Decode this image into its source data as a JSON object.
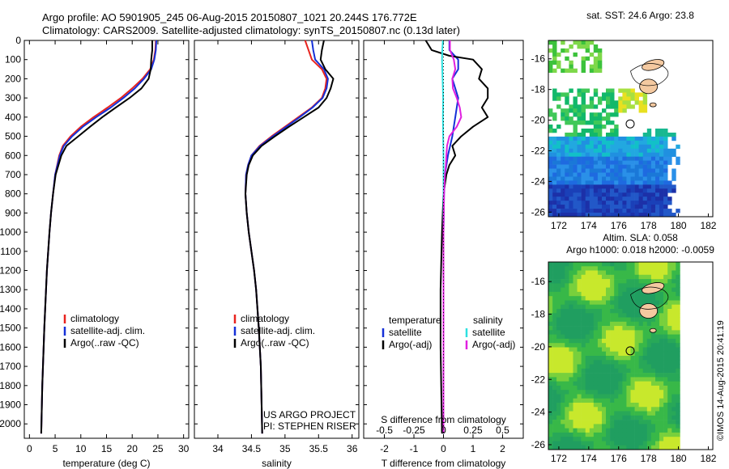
{
  "header": {
    "line1": "Argo profile: AO 5901905_245 06-Aug-2015 20150807_1021 20.244S 176.772E",
    "line2": "Climatology: CARS2009. Satellite-adjusted climatology: synTS_20150807.nc (0.13d later)"
  },
  "credits": {
    "project": "US ARGO PROJECT",
    "pi": "PI: STEPHEN RISER",
    "imos": "©IMOS 14-Aug-2015 20:41:19"
  },
  "colors": {
    "climatology": "#e8231e",
    "satellite": "#1530d8",
    "argo": "#000000",
    "salinity_satellite": "#2de0e0",
    "salinity_argo": "#e020e0"
  },
  "depth_axis": {
    "ylim": [
      0,
      2075
    ],
    "ticks": [
      0,
      100,
      200,
      300,
      400,
      500,
      600,
      700,
      800,
      900,
      1000,
      1100,
      1200,
      1300,
      1400,
      1500,
      1600,
      1700,
      1800,
      1900,
      2000
    ]
  },
  "chart_data": [
    {
      "id": "temperature",
      "type": "line",
      "xlabel": "temperature (deg C)",
      "xlim": [
        -1,
        31
      ],
      "xticks": [
        0,
        5,
        10,
        15,
        20,
        25,
        30
      ],
      "legend": [
        "climatology",
        "satellite-adj. clim.",
        "Argo(..raw -QC)"
      ],
      "legend_position": "lower-middle",
      "series": [
        {
          "name": "climatology",
          "color": "#e8231e",
          "depth": [
            0,
            50,
            100,
            150,
            200,
            250,
            300,
            350,
            400,
            450,
            500,
            550,
            600,
            700,
            800,
            900,
            1000,
            1200,
            1500,
            1800,
            2050
          ],
          "values": [
            24.6,
            24.5,
            24.2,
            23.5,
            22.0,
            20.0,
            17.8,
            15.2,
            12.5,
            10.0,
            8.0,
            6.5,
            5.8,
            5.0,
            4.6,
            4.2,
            3.9,
            3.4,
            2.9,
            2.5,
            2.3
          ]
        },
        {
          "name": "satellite-adj. clim.",
          "color": "#1530d8",
          "depth": [
            0,
            50,
            100,
            150,
            200,
            250,
            300,
            350,
            400,
            450,
            500,
            550,
            600,
            700,
            800,
            900,
            1000,
            1200,
            1500,
            1800,
            2050
          ],
          "values": [
            24.7,
            24.6,
            24.3,
            23.7,
            22.3,
            20.5,
            18.3,
            15.8,
            13.0,
            10.4,
            8.3,
            6.7,
            5.9,
            5.0,
            4.6,
            4.2,
            3.9,
            3.4,
            2.9,
            2.5,
            2.3
          ]
        },
        {
          "name": "Argo(..raw -QC)",
          "color": "#000000",
          "depth": [
            0,
            50,
            75,
            100,
            150,
            200,
            250,
            300,
            350,
            400,
            450,
            500,
            550,
            600,
            700,
            800,
            900,
            1000,
            1200,
            1500,
            1800,
            2050
          ],
          "values": [
            23.9,
            23.9,
            23.8,
            23.7,
            23.6,
            23.2,
            21.8,
            19.5,
            16.8,
            14.2,
            11.8,
            9.5,
            7.2,
            6.2,
            5.1,
            4.6,
            4.2,
            3.9,
            3.4,
            2.9,
            2.5,
            2.3
          ]
        }
      ]
    },
    {
      "id": "salinity",
      "type": "line",
      "xlabel": "salinity",
      "xlim": [
        33.65,
        36.1
      ],
      "xticks": [
        34,
        34.5,
        35,
        35.5,
        36
      ],
      "legend": [
        "climatology",
        "satellite-adj. clim.",
        "Argo(..raw -QC)"
      ],
      "legend_position": "lower-middle",
      "series": [
        {
          "name": "climatology",
          "color": "#e8231e",
          "depth": [
            0,
            50,
            100,
            150,
            200,
            250,
            300,
            350,
            400,
            450,
            500,
            550,
            600,
            650,
            700,
            800,
            900,
            1000,
            1100,
            1200,
            1300,
            1500,
            1700,
            2050
          ],
          "values": [
            35.3,
            35.35,
            35.4,
            35.55,
            35.62,
            35.6,
            35.55,
            35.4,
            35.2,
            35.0,
            34.8,
            34.62,
            34.5,
            34.45,
            34.42,
            34.41,
            34.43,
            34.46,
            34.5,
            34.54,
            34.57,
            34.61,
            34.64,
            34.66
          ]
        },
        {
          "name": "satellite-adj. clim.",
          "color": "#1530d8",
          "depth": [
            0,
            50,
            100,
            150,
            200,
            250,
            300,
            350,
            400,
            450,
            500,
            550,
            600,
            650,
            700,
            800,
            900,
            1000,
            1100,
            1200,
            1300,
            1500,
            1700,
            2050
          ],
          "values": [
            35.4,
            35.42,
            35.45,
            35.58,
            35.64,
            35.62,
            35.56,
            35.41,
            35.22,
            35.02,
            34.82,
            34.63,
            34.5,
            34.45,
            34.42,
            34.41,
            34.43,
            34.46,
            34.5,
            34.54,
            34.57,
            34.61,
            34.64,
            34.66
          ]
        },
        {
          "name": "Argo(..raw -QC)",
          "color": "#000000",
          "depth": [
            0,
            50,
            100,
            150,
            200,
            250,
            300,
            350,
            400,
            450,
            500,
            550,
            600,
            650,
            700,
            800,
            900,
            1000,
            1100,
            1200,
            1300,
            1500,
            1700,
            2050
          ],
          "values": [
            35.58,
            35.55,
            35.53,
            35.6,
            35.72,
            35.68,
            35.62,
            35.5,
            35.28,
            35.06,
            34.85,
            34.65,
            34.52,
            34.46,
            34.43,
            34.41,
            34.43,
            34.46,
            34.5,
            34.54,
            34.57,
            34.61,
            34.64,
            34.66
          ]
        }
      ]
    },
    {
      "id": "difference",
      "type": "line",
      "xlabel": "T difference from climatology",
      "xlabel_top": "S difference from climatology",
      "xlim": [
        -2.7,
        2.7
      ],
      "xticks": [
        -2,
        -1,
        0,
        1,
        2
      ],
      "xticks_top": [
        "-0.5",
        "-0.25",
        "0",
        "0.25",
        "0.5"
      ],
      "legend_temperature_title": "temperature",
      "legend_salinity_title": "salinity",
      "legend_temperature": [
        "satellite",
        "Argo(-adj)"
      ],
      "legend_salinity": [
        "satellite",
        "Argo(-adj)"
      ],
      "series": [
        {
          "name": "T satellite",
          "color": "#1530d8",
          "depth": [
            0,
            50,
            100,
            150,
            200,
            300,
            400,
            500,
            600,
            700,
            800,
            1000,
            2050
          ],
          "values": [
            0.2,
            0.2,
            0.5,
            0.5,
            0.3,
            0.5,
            0.4,
            0.3,
            0.15,
            0.05,
            0.02,
            0.0,
            0.0
          ]
        },
        {
          "name": "T Argo(-adj)",
          "color": "#000000",
          "depth": [
            0,
            50,
            80,
            100,
            150,
            200,
            250,
            300,
            350,
            400,
            450,
            500,
            550,
            600,
            650,
            700,
            800,
            1000,
            1300,
            1600,
            2050
          ],
          "values": [
            -0.6,
            -0.4,
            0.2,
            1.0,
            1.3,
            1.2,
            1.5,
            1.5,
            1.3,
            1.5,
            1.0,
            0.6,
            0.3,
            0.4,
            0.2,
            0.1,
            0.0,
            -0.05,
            -0.1,
            -0.1,
            -0.05
          ]
        },
        {
          "name": "S satellite",
          "color": "#2de0e0",
          "depth": [
            0,
            50,
            100,
            150,
            200,
            300,
            400,
            500,
            600,
            700,
            800,
            1000,
            1400,
            2050
          ],
          "values": [
            -0.02,
            -0.04,
            -0.05,
            -0.04,
            -0.03,
            -0.01,
            -0.02,
            -0.01,
            0.0,
            0.0,
            0.0,
            0.0,
            0.0,
            0.0
          ]
        },
        {
          "name": "S Argo(-adj)",
          "color": "#e020e0",
          "depth": [
            0,
            50,
            100,
            150,
            200,
            250,
            300,
            350,
            400,
            450,
            500,
            550,
            600,
            650,
            700,
            800,
            1000,
            2050
          ],
          "values": [
            0.22,
            0.22,
            0.35,
            0.4,
            0.3,
            0.32,
            0.45,
            0.55,
            0.6,
            0.45,
            0.2,
            0.12,
            0.1,
            0.08,
            0.05,
            0.02,
            0.0,
            0.0
          ]
        }
      ]
    },
    {
      "id": "sst_map",
      "type": "heatmap",
      "title": "sat. SST: 24.6  Argo: 23.8",
      "xlim": [
        171.3,
        182.3
      ],
      "ylim": [
        -26.3,
        -14.8
      ],
      "xticks": [
        172,
        174,
        176,
        178,
        180,
        182
      ],
      "yticks": [
        -16,
        -18,
        -20,
        -22,
        -24,
        -26
      ],
      "profile_location": [
        176.772,
        -20.244
      ]
    },
    {
      "id": "sla_map",
      "type": "heatmap",
      "title": "Altim. SLA: 0.058",
      "subtitle": "Argo h1000: 0.018 h2000: -0.0059",
      "xlim": [
        171.3,
        182.3
      ],
      "ylim": [
        -26.3,
        -14.8
      ],
      "xticks": [
        172,
        174,
        176,
        178,
        180,
        182
      ],
      "yticks": [
        -16,
        -18,
        -20,
        -22,
        -24,
        -26
      ],
      "profile_location": [
        176.772,
        -20.244
      ]
    }
  ]
}
